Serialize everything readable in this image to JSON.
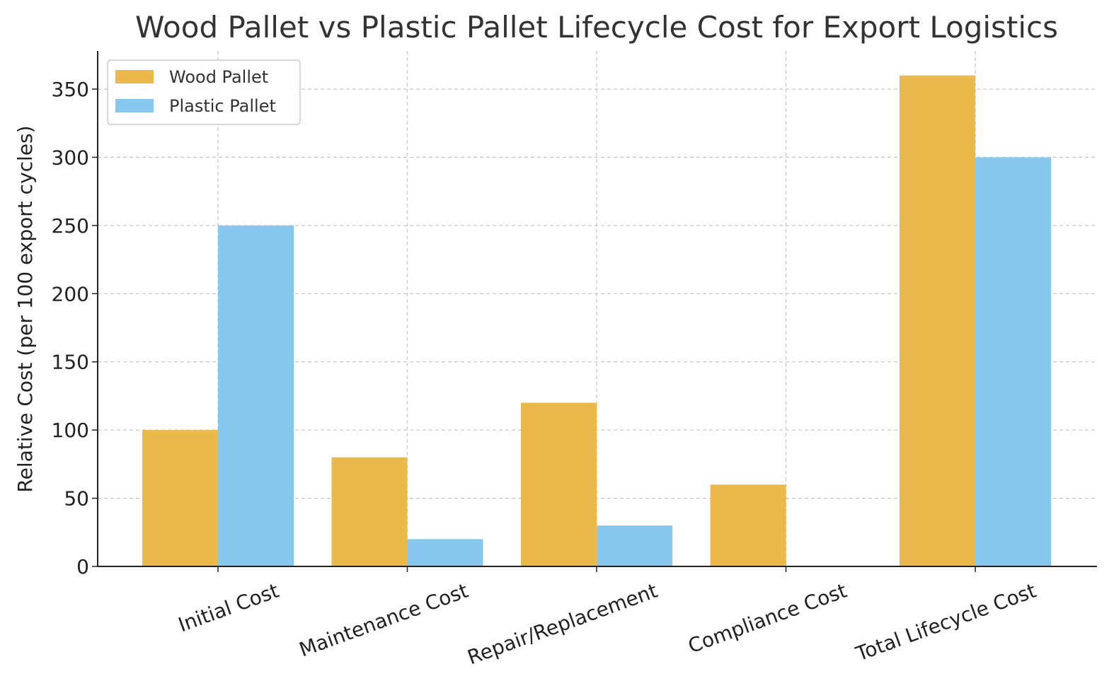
{
  "chart_data": {
    "type": "bar",
    "title": "Wood Pallet vs Plastic Pallet Lifecycle Cost for Export Logistics",
    "xlabel": "",
    "ylabel": "Relative Cost (per 100 export cycles)",
    "categories": [
      "Initial Cost",
      "Maintenance Cost",
      "Repair/Replacement",
      "Compliance Cost",
      "Total Lifecycle Cost"
    ],
    "series": [
      {
        "name": "Wood Pallet",
        "color": "#EBB94B",
        "values": [
          100,
          80,
          120,
          60,
          360
        ]
      },
      {
        "name": "Plastic Pallet",
        "color": "#88C8EE",
        "values": [
          250,
          20,
          30,
          0,
          300
        ]
      }
    ],
    "ylim": [
      0,
      378
    ],
    "yticks": [
      0,
      50,
      100,
      150,
      200,
      250,
      300,
      350
    ],
    "grid": true,
    "legend_position": "top-left"
  }
}
